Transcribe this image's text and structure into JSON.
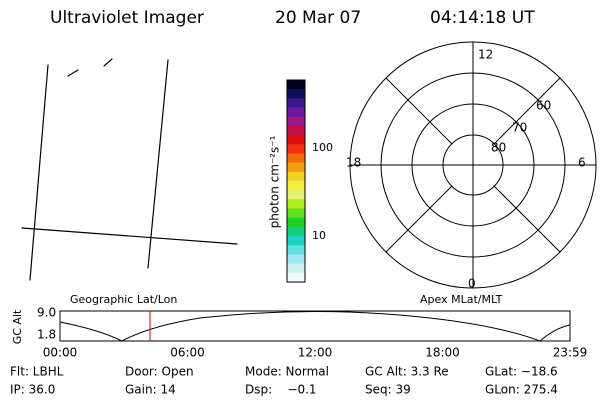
{
  "header": {
    "instrument": "Ultraviolet Imager",
    "date": "20 Mar 07",
    "time": "04:14:18 UT"
  },
  "colorbar": {
    "label": "photon cm⁻²s⁻¹",
    "ticks": [
      "100",
      "10"
    ],
    "colors": [
      "#000020",
      "#10105a",
      "#3a1a8a",
      "#6a1a9a",
      "#9a1a8a",
      "#c0104a",
      "#e01010",
      "#f03010",
      "#f07010",
      "#f0a010",
      "#f0d020",
      "#f0f040",
      "#e0f070",
      "#b0f020",
      "#60e020",
      "#20d020",
      "#10d080",
      "#20d0c0",
      "#60e0e0",
      "#a0e8f0",
      "#d0f0f0",
      "#f0f8f8"
    ]
  },
  "polar": {
    "mlt": [
      "12",
      "18",
      "6",
      "0"
    ],
    "lat": [
      "60",
      "70",
      "80"
    ]
  },
  "orbit": {
    "left_title": "Geographic Lat/Lon",
    "right_title": "Apex MLat/MLT",
    "ylabel": "GC Alt",
    "yticks": [
      "9.0",
      "1.8"
    ],
    "xticks": [
      "00:00",
      "06:00",
      "12:00",
      "18:00",
      "23:59"
    ]
  },
  "info": [
    [
      "Flt: LBHL",
      "Door: Open",
      "Mode: Normal",
      "GC Alt: 3.3 Re",
      "GLat: −18.6"
    ],
    [
      "IP: 36.0",
      "Gain: 14",
      "Dsp:    −0.1",
      "Seq: 39",
      "GLon: 275.4"
    ]
  ]
}
